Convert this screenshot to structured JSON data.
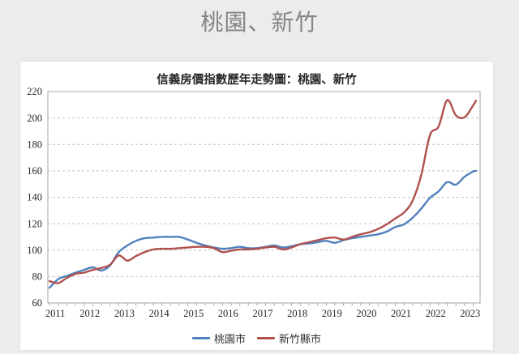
{
  "page": {
    "title": "桃園、新竹",
    "background_color": "#ececec"
  },
  "chart": {
    "title": "信義房價指數歷年走勢圖：桃園、新竹"
  },
  "chart_data": {
    "type": "line",
    "title": "信義房價指數歷年走勢圖：桃園、新竹",
    "xlabel": "",
    "ylabel": "",
    "x_axis": {
      "labels": [
        2011,
        2012,
        2013,
        2014,
        2015,
        2016,
        2017,
        2018,
        2019,
        2020,
        2021,
        2022,
        2023
      ],
      "range": [
        2010.95,
        2023.45
      ],
      "minor_tick_interval": 0.25
    },
    "y_axis": {
      "ticks": [
        60,
        80,
        100,
        120,
        140,
        160,
        180,
        200,
        220
      ],
      "range": [
        60,
        220
      ],
      "gridlines": "dashed"
    },
    "legend_position": "bottom",
    "x": [
      2011.0,
      2011.25,
      2011.5,
      2011.75,
      2012.0,
      2012.25,
      2012.5,
      2012.75,
      2013.0,
      2013.25,
      2013.5,
      2013.75,
      2014.0,
      2014.25,
      2014.5,
      2014.75,
      2015.0,
      2015.25,
      2015.5,
      2015.75,
      2016.0,
      2016.25,
      2016.5,
      2016.75,
      2017.0,
      2017.25,
      2017.5,
      2017.75,
      2018.0,
      2018.25,
      2018.5,
      2018.75,
      2019.0,
      2019.25,
      2019.5,
      2019.75,
      2020.0,
      2020.25,
      2020.5,
      2020.75,
      2021.0,
      2021.25,
      2021.5,
      2021.75,
      2022.0,
      2022.25,
      2022.5,
      2022.75,
      2023.0,
      2023.25,
      2023.33
    ],
    "series": [
      {
        "name": "桃園市",
        "color": "#4f81bd",
        "values": [
          71.5,
          78,
          80.5,
          83,
          85,
          87,
          84.5,
          88.5,
          98.5,
          103.5,
          107,
          109,
          109.5,
          110,
          110,
          110,
          108,
          105.5,
          103.5,
          102,
          101,
          101.5,
          102.5,
          101.5,
          101.5,
          102.5,
          103.5,
          102,
          103,
          104.5,
          105,
          106,
          107,
          105.5,
          107.5,
          109,
          110,
          111,
          112,
          114,
          117.5,
          119.5,
          124.5,
          131.5,
          139.5,
          144.5,
          151.5,
          149.5,
          155.5,
          159.5,
          160
        ]
      },
      {
        "name": "新竹縣市",
        "color": "#b0504d",
        "values": [
          76.5,
          75,
          79,
          82,
          83,
          85,
          86.5,
          89,
          96,
          92,
          95.5,
          98.5,
          100.5,
          101,
          101,
          101.5,
          102,
          102.5,
          102.5,
          101.5,
          98.5,
          99.5,
          100.5,
          100.5,
          101,
          102,
          102.5,
          100.5,
          102,
          104.5,
          106,
          107.5,
          109,
          109.5,
          108,
          110,
          112,
          113.5,
          116,
          119.5,
          124,
          128.5,
          137.5,
          157,
          187,
          193.5,
          213.5,
          202,
          200.5,
          209.5,
          213
        ]
      }
    ]
  }
}
